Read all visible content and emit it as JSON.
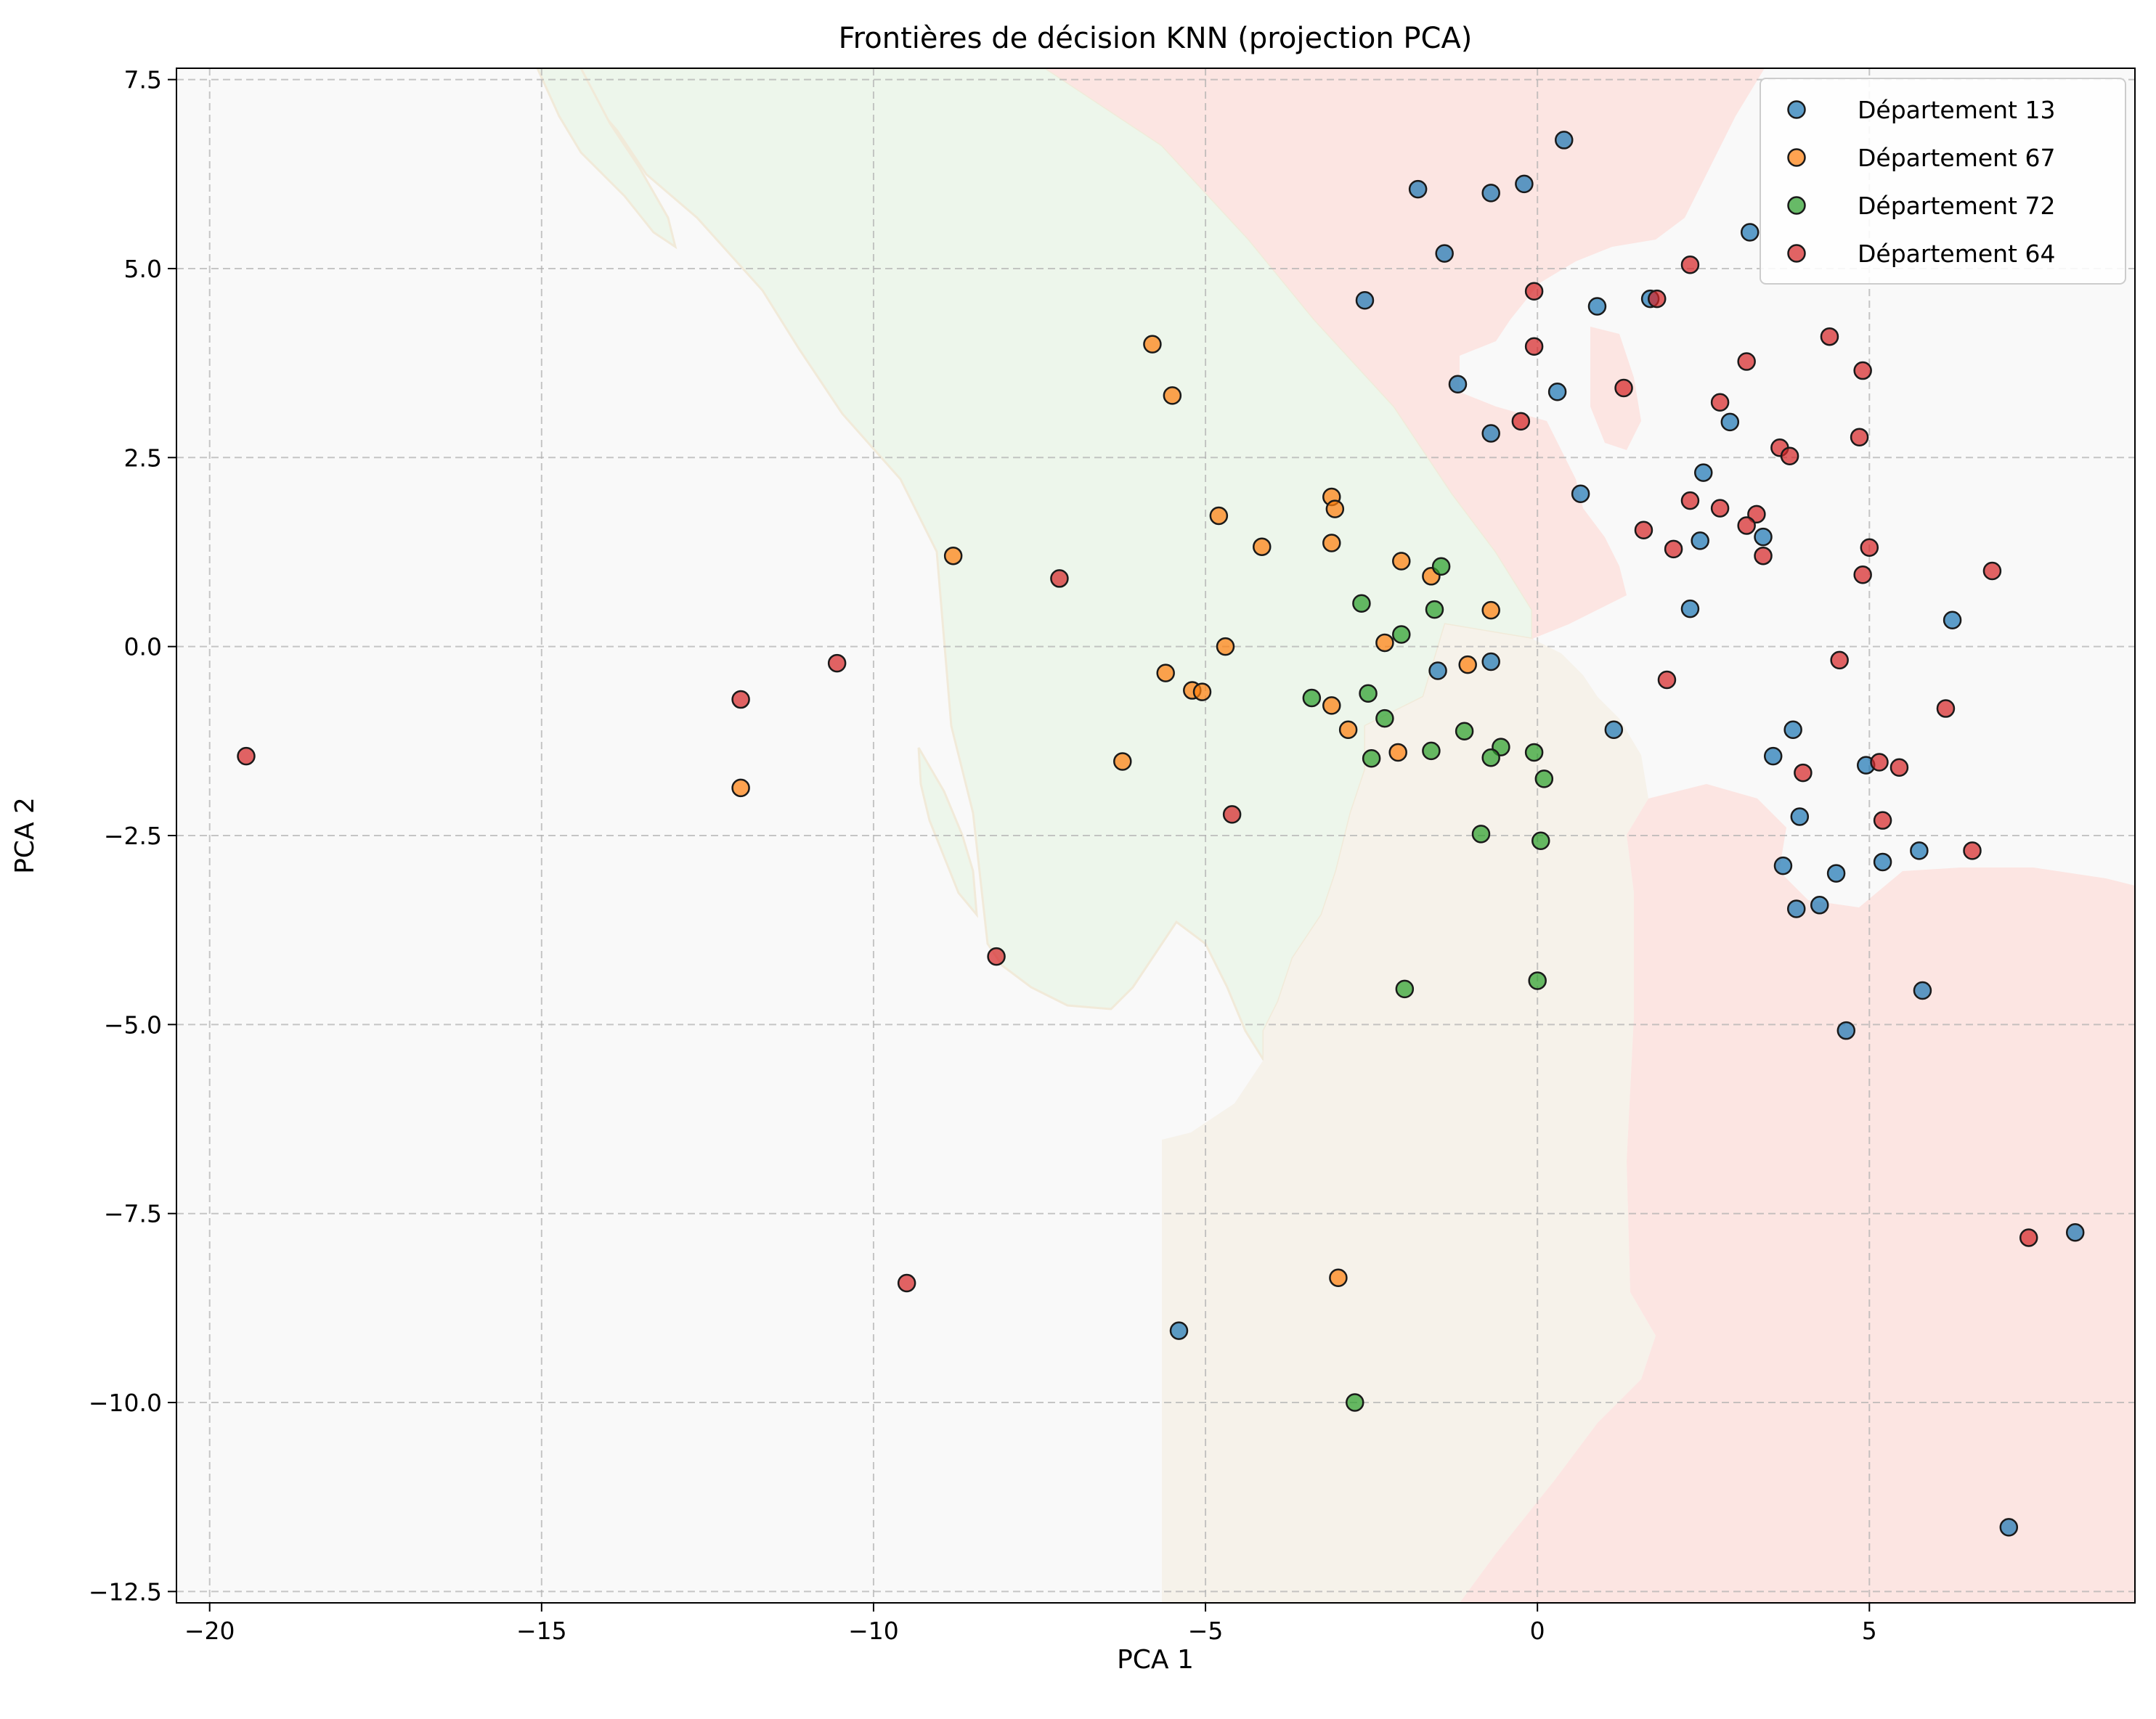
{
  "chart_data": {
    "type": "scatter",
    "title": "Frontières de décision KNN (projection PCA)",
    "xlabel": "PCA 1",
    "ylabel": "PCA 2",
    "xlim": [
      -20.5,
      9.0
    ],
    "ylim": [
      -12.65,
      7.65
    ],
    "xticks": [
      -20,
      -15,
      -10,
      -5,
      0,
      5
    ],
    "xtick_labels": [
      "−20",
      "−15",
      "−10",
      "−5",
      "0",
      "5"
    ],
    "yticks": [
      7.5,
      5.0,
      2.5,
      0.0,
      -2.5,
      -5.0,
      -7.5,
      -10.0,
      -12.5
    ],
    "ytick_labels": [
      "7.5",
      "5.0",
      "2.5",
      "0.0",
      "−2.5",
      "−5.0",
      "−7.5",
      "−10.0",
      "−12.5"
    ],
    "grid": true,
    "legend_position": "top-right",
    "series": [
      {
        "name": "Département 13",
        "color": "#1f77b4",
        "points": [
          [
            0.4,
            6.7
          ],
          [
            -1.8,
            6.05
          ],
          [
            -0.7,
            6.0
          ],
          [
            -0.2,
            6.12
          ],
          [
            -1.4,
            5.2
          ],
          [
            3.2,
            5.48
          ],
          [
            -2.6,
            4.58
          ],
          [
            0.9,
            4.5
          ],
          [
            1.7,
            4.6
          ],
          [
            -1.2,
            3.47
          ],
          [
            0.3,
            3.37
          ],
          [
            -0.7,
            2.82
          ],
          [
            2.9,
            2.97
          ],
          [
            2.5,
            2.3
          ],
          [
            0.65,
            2.02
          ],
          [
            2.45,
            1.4
          ],
          [
            3.4,
            1.45
          ],
          [
            2.3,
            0.5
          ],
          [
            6.25,
            0.35
          ],
          [
            -1.5,
            -0.32
          ],
          [
            -0.7,
            -0.2
          ],
          [
            1.15,
            -1.1
          ],
          [
            3.85,
            -1.1
          ],
          [
            3.55,
            -1.45
          ],
          [
            4.95,
            -1.57
          ],
          [
            3.95,
            -2.25
          ],
          [
            3.7,
            -2.9
          ],
          [
            5.2,
            -2.85
          ],
          [
            5.75,
            -2.7
          ],
          [
            4.5,
            -3.0
          ],
          [
            3.9,
            -3.47
          ],
          [
            4.25,
            -3.42
          ],
          [
            5.8,
            -4.55
          ],
          [
            4.65,
            -5.08
          ],
          [
            8.1,
            -7.75
          ],
          [
            7.1,
            -11.65
          ],
          [
            -5.4,
            -9.05
          ]
        ]
      },
      {
        "name": "Département 67",
        "color": "#ff7f0e",
        "points": [
          [
            -5.8,
            4.0
          ],
          [
            -5.5,
            3.32
          ],
          [
            -3.1,
            1.98
          ],
          [
            -3.05,
            1.82
          ],
          [
            -4.8,
            1.73
          ],
          [
            -8.8,
            1.2
          ],
          [
            -4.15,
            1.32
          ],
          [
            -3.1,
            1.37
          ],
          [
            -2.05,
            1.13
          ],
          [
            -1.6,
            0.93
          ],
          [
            -0.7,
            0.48
          ],
          [
            -4.7,
            0.0
          ],
          [
            -2.3,
            0.05
          ],
          [
            -1.05,
            -0.24
          ],
          [
            -5.6,
            -0.35
          ],
          [
            -5.2,
            -0.58
          ],
          [
            -5.05,
            -0.6
          ],
          [
            -3.1,
            -0.78
          ],
          [
            -2.85,
            -1.1
          ],
          [
            -2.1,
            -1.4
          ],
          [
            -6.25,
            -1.52
          ],
          [
            -12.0,
            -1.87
          ],
          [
            -3.0,
            -8.35
          ]
        ]
      },
      {
        "name": "Département 72",
        "color": "#2ca02c",
        "points": [
          [
            -1.45,
            1.06
          ],
          [
            -2.65,
            0.57
          ],
          [
            -1.55,
            0.49
          ],
          [
            -2.05,
            0.16
          ],
          [
            -3.4,
            -0.68
          ],
          [
            -2.55,
            -0.62
          ],
          [
            -2.3,
            -0.95
          ],
          [
            -1.1,
            -1.12
          ],
          [
            -1.6,
            -1.38
          ],
          [
            -0.55,
            -1.33
          ],
          [
            -0.7,
            -1.47
          ],
          [
            -0.05,
            -1.4
          ],
          [
            -2.5,
            -1.48
          ],
          [
            0.1,
            -1.75
          ],
          [
            -0.85,
            -2.48
          ],
          [
            0.05,
            -2.57
          ],
          [
            -2.0,
            -4.53
          ],
          [
            0.0,
            -4.42
          ],
          [
            -2.75,
            -10.0
          ]
        ]
      },
      {
        "name": "Département 64",
        "color": "#d62728",
        "points": [
          [
            2.3,
            5.05
          ],
          [
            -0.05,
            4.7
          ],
          [
            1.8,
            4.6
          ],
          [
            4.4,
            4.1
          ],
          [
            -0.05,
            3.97
          ],
          [
            3.15,
            3.77
          ],
          [
            4.9,
            3.65
          ],
          [
            1.3,
            3.42
          ],
          [
            2.75,
            3.23
          ],
          [
            -0.25,
            2.98
          ],
          [
            4.85,
            2.77
          ],
          [
            3.65,
            2.63
          ],
          [
            3.8,
            2.52
          ],
          [
            2.3,
            1.93
          ],
          [
            2.75,
            1.83
          ],
          [
            3.3,
            1.75
          ],
          [
            3.15,
            1.6
          ],
          [
            1.6,
            1.54
          ],
          [
            2.05,
            1.29
          ],
          [
            5.0,
            1.31
          ],
          [
            3.4,
            1.2
          ],
          [
            6.85,
            1.0
          ],
          [
            4.9,
            0.95
          ],
          [
            -7.2,
            0.9
          ],
          [
            4.55,
            -0.18
          ],
          [
            -10.55,
            -0.22
          ],
          [
            1.95,
            -0.44
          ],
          [
            -12.0,
            -0.7
          ],
          [
            6.15,
            -0.82
          ],
          [
            -19.45,
            -1.45
          ],
          [
            5.15,
            -1.53
          ],
          [
            5.45,
            -1.6
          ],
          [
            4.0,
            -1.67
          ],
          [
            -4.6,
            -2.22
          ],
          [
            5.2,
            -2.3
          ],
          [
            6.55,
            -2.7
          ],
          [
            -8.15,
            -4.1
          ],
          [
            7.4,
            -7.82
          ],
          [
            -9.5,
            -8.42
          ]
        ]
      }
    ]
  }
}
